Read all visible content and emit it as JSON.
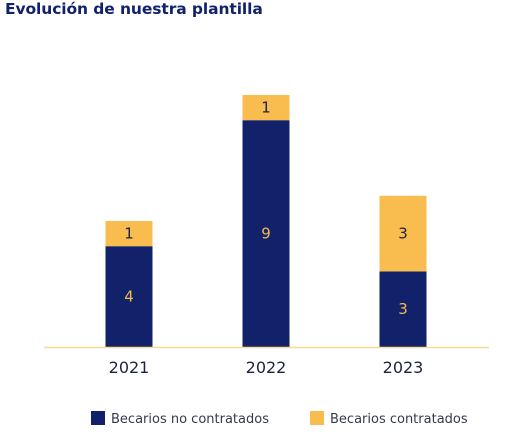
{
  "chart_data": {
    "type": "bar",
    "stacked": true,
    "title": "Evolución de nuestra plantilla",
    "xlabel": "",
    "ylabel": "",
    "categories": [
      "2021",
      "2022",
      "2023"
    ],
    "series": [
      {
        "name": "Becarios no contratados",
        "values": [
          4,
          9,
          3
        ],
        "color": "#11226a",
        "label_color": "#f3b94d"
      },
      {
        "name": "Becarios contratados",
        "values": [
          1,
          1,
          3
        ],
        "color": "#f9bd4f",
        "label_color": "#1b2340"
      }
    ],
    "ylim": [
      0,
      11
    ],
    "grid": false,
    "legend_position": "bottom"
  }
}
